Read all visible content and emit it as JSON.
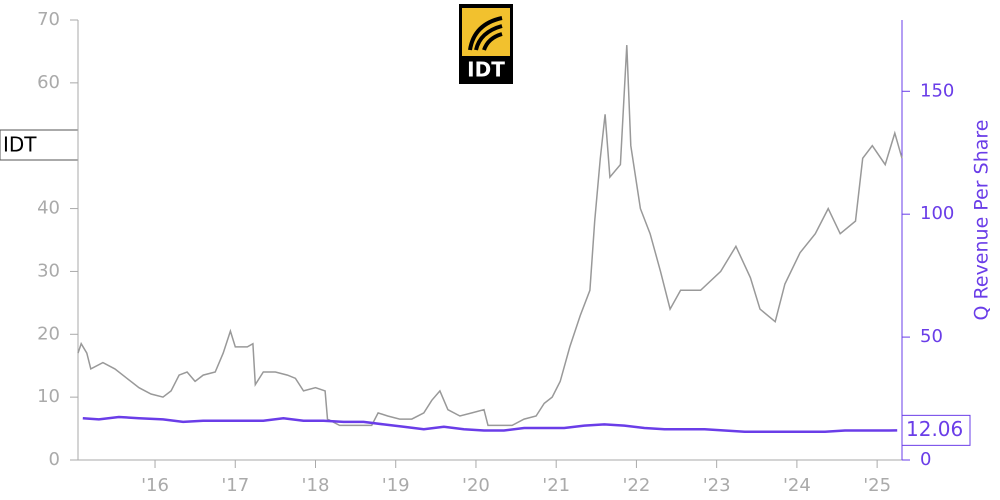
{
  "chart_data": {
    "type": "line",
    "title": "IDT",
    "y2_label": "Q Revenue Per Share",
    "xlim": [
      2015.04,
      2025.31
    ],
    "xticks": [
      {
        "value": 2016,
        "label": "'16"
      },
      {
        "value": 2017,
        "label": "'17"
      },
      {
        "value": 2018,
        "label": "'18"
      },
      {
        "value": 2019,
        "label": "'19"
      },
      {
        "value": 2020,
        "label": "'20"
      },
      {
        "value": 2021,
        "label": "'21"
      },
      {
        "value": 2022,
        "label": "'22"
      },
      {
        "value": 2023,
        "label": "'23"
      },
      {
        "value": 2024,
        "label": "'24"
      },
      {
        "value": 2025,
        "label": "'25"
      }
    ],
    "ylim": [
      0,
      70
    ],
    "yticks": [
      0,
      10,
      20,
      30,
      40,
      60,
      70
    ],
    "y2lim": [
      0,
      179
    ],
    "y2ticks": [
      0,
      50,
      100,
      150
    ],
    "series": [
      {
        "name": "IDT",
        "color": "#999999",
        "x": [
          2015.04,
          2015.08,
          2015.15,
          2015.2,
          2015.35,
          2015.5,
          2015.65,
          2015.8,
          2015.95,
          2016.1,
          2016.2,
          2016.3,
          2016.4,
          2016.5,
          2016.6,
          2016.75,
          2016.85,
          2016.94,
          2017.0,
          2017.15,
          2017.22,
          2017.25,
          2017.35,
          2017.5,
          2017.65,
          2017.75,
          2017.85,
          2018.0,
          2018.12,
          2018.15,
          2018.3,
          2018.5,
          2018.7,
          2018.78,
          2018.9,
          2019.05,
          2019.2,
          2019.35,
          2019.45,
          2019.55,
          2019.65,
          2019.8,
          2019.95,
          2020.1,
          2020.15,
          2020.3,
          2020.45,
          2020.6,
          2020.75,
          2020.85,
          2020.95,
          2021.05,
          2021.17,
          2021.3,
          2021.42,
          2021.48,
          2021.55,
          2021.61,
          2021.67,
          2021.8,
          2021.88,
          2021.93,
          2022.05,
          2022.17,
          2022.3,
          2022.42,
          2022.55,
          2022.8,
          2023.05,
          2023.24,
          2023.42,
          2023.54,
          2023.73,
          2023.85,
          2024.04,
          2024.23,
          2024.39,
          2024.54,
          2024.73,
          2024.82,
          2024.94,
          2025.1,
          2025.22,
          2025.31
        ],
        "values": [
          17,
          18.5,
          17,
          14.5,
          15.5,
          14.5,
          13,
          11.5,
          10.5,
          10,
          11,
          13.5,
          14,
          12.5,
          13.5,
          14,
          17,
          20.5,
          18,
          18,
          18.5,
          12,
          14,
          14,
          13.5,
          13,
          11,
          11.5,
          11,
          6.5,
          5.5,
          5.5,
          5.5,
          7.5,
          7,
          6.5,
          6.5,
          7.5,
          9.5,
          11,
          8,
          7,
          7.5,
          8,
          5.5,
          5.5,
          5.5,
          6.5,
          7,
          9,
          10,
          12.5,
          18,
          23,
          27,
          38,
          48,
          55,
          45,
          47,
          66,
          50,
          40,
          36,
          30,
          24,
          27,
          27,
          30,
          34,
          29,
          24,
          22,
          28,
          33,
          36,
          40,
          36,
          38,
          48,
          50,
          47,
          52,
          48
        ]
      },
      {
        "name": "Q Revenue Per Share",
        "color": "#6a3de8",
        "axis": "y2",
        "x": [
          2015.1,
          2015.3,
          2015.55,
          2015.8,
          2016.1,
          2016.35,
          2016.6,
          2016.85,
          2017.1,
          2017.35,
          2017.6,
          2017.85,
          2018.1,
          2018.35,
          2018.6,
          2018.85,
          2019.1,
          2019.35,
          2019.6,
          2019.85,
          2020.1,
          2020.35,
          2020.6,
          2020.85,
          2021.1,
          2021.35,
          2021.6,
          2021.85,
          2022.1,
          2022.35,
          2022.6,
          2022.85,
          2023.1,
          2023.35,
          2023.6,
          2023.85,
          2024.1,
          2024.35,
          2024.6,
          2024.85,
          2025.1,
          2025.25
        ],
        "values": [
          17,
          16.5,
          17.5,
          17,
          16.5,
          15.5,
          16,
          16,
          16,
          16,
          17,
          16,
          16,
          15.5,
          15.5,
          14.5,
          13.5,
          12.5,
          13.5,
          12.5,
          12,
          12,
          13,
          13,
          13,
          14,
          14.5,
          14,
          13,
          12.5,
          12.5,
          12.5,
          12,
          11.5,
          11.5,
          11.5,
          11.5,
          11.5,
          12,
          12,
          12,
          12.06
        ]
      }
    ]
  }
}
